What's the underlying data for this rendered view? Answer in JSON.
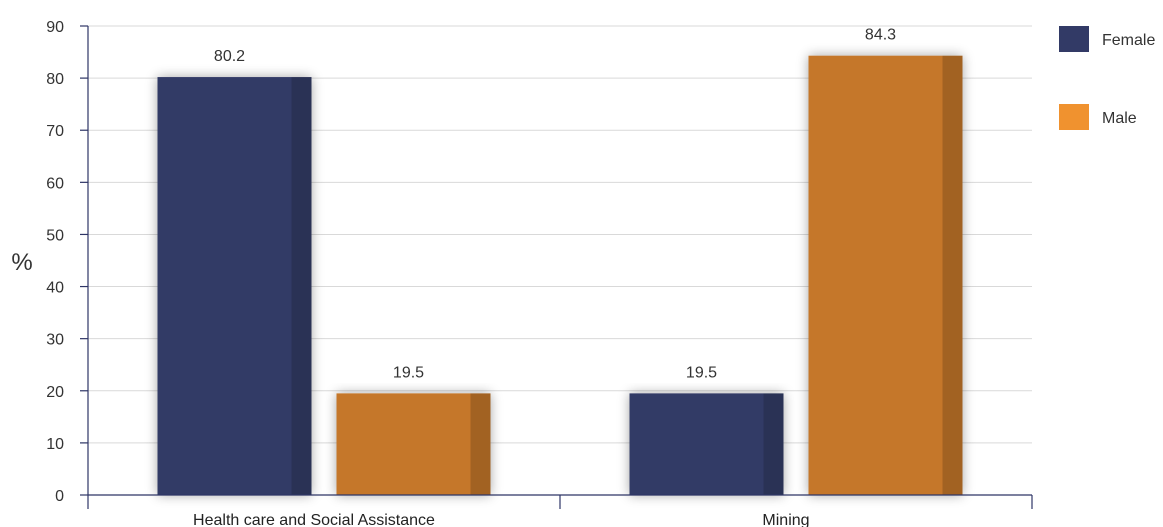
{
  "chart_data": {
    "type": "bar",
    "title": "",
    "xlabel": "",
    "ylabel": "%",
    "ylim": [
      0,
      90
    ],
    "yticks": [
      0,
      10,
      20,
      30,
      40,
      50,
      60,
      70,
      80,
      90
    ],
    "grid": true,
    "legend_position": "top-right",
    "categories": [
      "Health care and Social Assistance",
      "Mining"
    ],
    "series": [
      {
        "name": "Female",
        "color": "#323a66",
        "values": [
          80.2,
          19.5
        ]
      },
      {
        "name": "Male",
        "color": "#c5772b",
        "values": [
          19.5,
          84.3
        ]
      }
    ]
  }
}
